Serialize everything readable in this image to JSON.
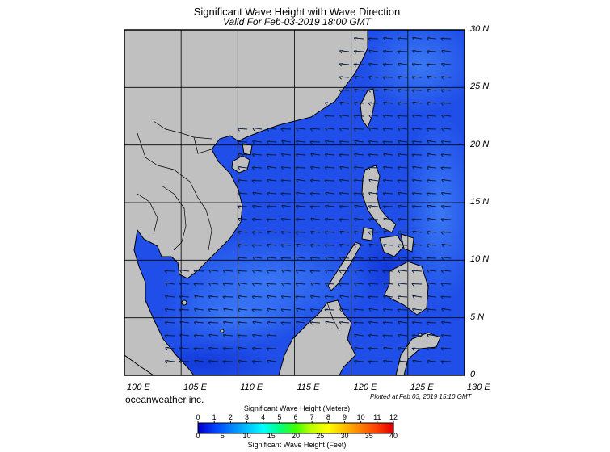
{
  "title": "Significant Wave Height with Wave Direction",
  "subtitle": "Valid For Feb-03-2019 18:00 GMT",
  "map": {
    "lat_labels": [
      "30 N",
      "25 N",
      "20 N",
      "15 N",
      "10 N",
      "5 N",
      "0"
    ],
    "lon_labels": [
      "100 E",
      "105 E",
      "110 E",
      "115 E",
      "120 E",
      "125 E",
      "130 E"
    ],
    "lat_values": [
      30,
      25,
      20,
      15,
      10,
      5,
      0
    ],
    "lon_values": [
      100,
      105,
      110,
      115,
      120,
      125,
      130
    ],
    "land_color": "#c0c0c0",
    "ocean_base_color": "#1f4fe8",
    "arrow_direction": "toward west-southwest"
  },
  "credit": "oceanweather inc.",
  "plotted": "Plotted at Feb 03, 2019 15:10 GMT",
  "legend": {
    "meters_title": "Significant Wave Height (Meters)",
    "feet_title": "Significant Wave Height (Feet)",
    "meters_ticks": [
      "0",
      "1",
      "2",
      "3",
      "4",
      "5",
      "6",
      "7",
      "8",
      "9",
      "10",
      "11",
      "12"
    ],
    "feet_ticks": [
      "0",
      "5",
      "10",
      "15",
      "20",
      "25",
      "30",
      "35",
      "40"
    ],
    "colors": [
      "#0000c8",
      "#0040ff",
      "#0080ff",
      "#00c0ff",
      "#00ffff",
      "#00ff80",
      "#40ff00",
      "#c0ff00",
      "#ffff00",
      "#ffc000",
      "#ff8000",
      "#ff4000",
      "#e00000"
    ]
  }
}
